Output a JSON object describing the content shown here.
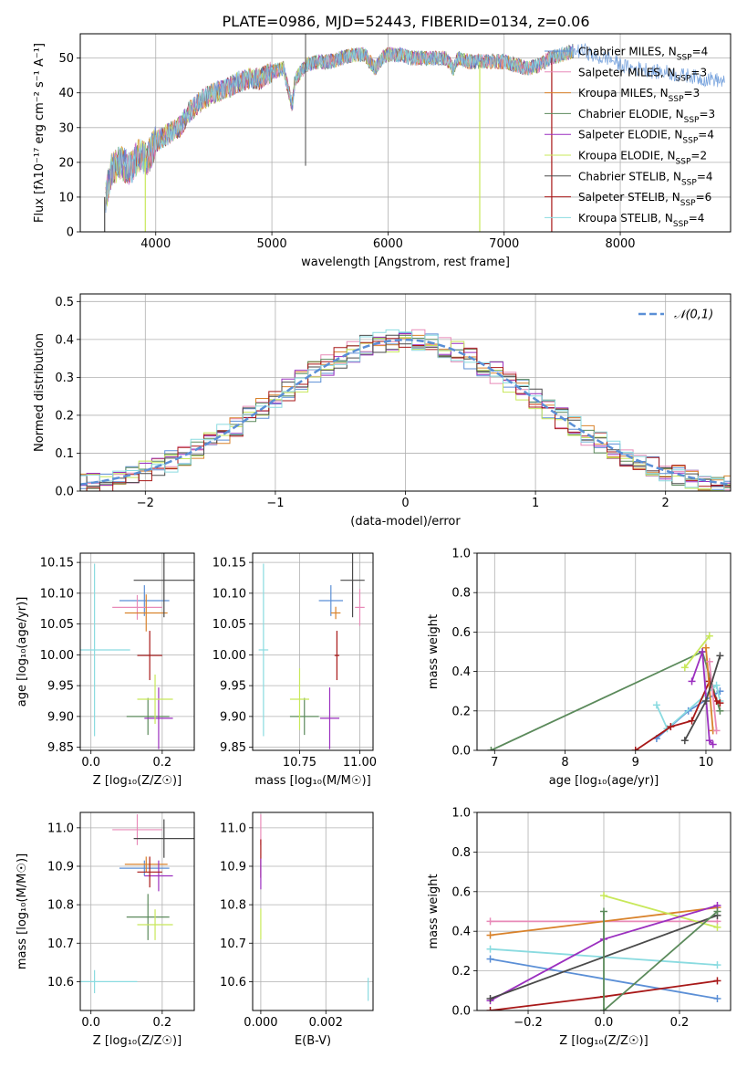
{
  "figure": {
    "title": "PLATE=0986, MJD=52443, FIBERID=0134, z=0.06"
  },
  "colors": {
    "chabrier_miles": "#5b8fd6",
    "salpeter_miles": "#e88ab8",
    "kroupa_miles": "#d9822b",
    "chabrier_elodie": "#5b8a5b",
    "salpeter_elodie": "#9b2fbf",
    "kroupa_elodie": "#c8e85a",
    "chabrier_stelib": "#4a4a4a",
    "salpeter_stelib": "#a81818",
    "kroupa_stelib": "#8adbe0",
    "grid": "#b0b0b0",
    "normal_curve": "#5b8fd6"
  },
  "chart_data": [
    {
      "id": "spectrum",
      "type": "line",
      "title": "PLATE=0986, MJD=52443, FIBERID=0134, z=0.06",
      "xlabel": "wavelength [Angstrom, rest frame]",
      "ylabel": "Flux [fλ10⁻¹⁷ erg cm⁻² s⁻¹ A⁻¹]",
      "xlim": [
        3350,
        8950
      ],
      "ylim": [
        0,
        57
      ],
      "xticks": [
        4000,
        5000,
        6000,
        7000,
        8000
      ],
      "yticks": [
        0,
        10,
        20,
        30,
        40,
        50
      ],
      "legend_position": "top-right",
      "legend": [
        {
          "label": "Chabrier MILES, N_SSP=4",
          "color_key": "chabrier_miles"
        },
        {
          "label": "Salpeter MILES, N_SSP=3",
          "color_key": "salpeter_miles"
        },
        {
          "label": "Kroupa MILES, N_SSP=3",
          "color_key": "kroupa_miles"
        },
        {
          "label": "Chabrier ELODIE, N_SSP=3",
          "color_key": "chabrier_elodie"
        },
        {
          "label": "Salpeter ELODIE, N_SSP=4",
          "color_key": "salpeter_elodie"
        },
        {
          "label": "Kroupa ELODIE, N_SSP=2",
          "color_key": "kroupa_elodie"
        },
        {
          "label": "Chabrier STELIB, N_SSP=4",
          "color_key": "chabrier_stelib"
        },
        {
          "label": "Salpeter STELIB, N_SSP=6",
          "color_key": "salpeter_stelib"
        },
        {
          "label": "Kroupa STELIB, N_SSP=4",
          "color_key": "kroupa_stelib"
        }
      ],
      "continuum": {
        "x": [
          3570,
          3620,
          3700,
          3780,
          3850,
          3930,
          4000,
          4100,
          4200,
          4300,
          4400,
          4500,
          4600,
          4700,
          4800,
          4860,
          4900,
          5000,
          5100,
          5175,
          5200,
          5300,
          5400,
          5500,
          5600,
          5700,
          5800,
          5890,
          5950,
          6000,
          6100,
          6200,
          6300,
          6400,
          6500,
          6563,
          6600,
          6700,
          6800,
          6900,
          7000,
          7100,
          7200,
          7300,
          7400,
          7500,
          7600
        ],
        "y": [
          10,
          18,
          20,
          18,
          22,
          21,
          26,
          28,
          30,
          35,
          38,
          40,
          41,
          43,
          44,
          44,
          44,
          46,
          47,
          36,
          44,
          48,
          49,
          49,
          50,
          51,
          51,
          47,
          50,
          51,
          51,
          50,
          50,
          50,
          50,
          47,
          50,
          49,
          49,
          49,
          49,
          48,
          47,
          48,
          50,
          51,
          52
        ]
      },
      "model_tail": {
        "x": [
          7600,
          7700,
          7800,
          7900,
          8000,
          8100,
          8200,
          8300,
          8400,
          8500,
          8600,
          8700,
          8800,
          8900
        ],
        "y": [
          52,
          52,
          50,
          50,
          48,
          47,
          47,
          46,
          46,
          45,
          45,
          44,
          44,
          43
        ]
      },
      "dropouts": [
        {
          "x": 3560,
          "color_key": "chabrier_stelib"
        },
        {
          "x": 3910,
          "color_key": "kroupa_elodie"
        },
        {
          "x": 6790,
          "color_key": "kroupa_elodie"
        },
        {
          "x": 7410,
          "color_key": "salpeter_stelib"
        }
      ]
    },
    {
      "id": "residuals",
      "type": "histogram",
      "xlabel": "(data-model)/error",
      "ylabel": "Normed distribution",
      "xlim": [
        -2.5,
        2.5
      ],
      "ylim": [
        0,
        0.52
      ],
      "xticks": [
        -2,
        -1,
        0,
        1,
        2
      ],
      "yticks": [
        0.0,
        0.1,
        0.2,
        0.3,
        0.4,
        0.5
      ],
      "bin_width": 0.1,
      "legend_position": "top-right",
      "curve_label": "𝒩(0,1)",
      "curve_mean": 0,
      "curve_sigma": 1
    },
    {
      "id": "age_vs_z",
      "type": "scatter",
      "xlabel": "Z [log₁₀(Z/Z☉)]",
      "ylabel": "age  [log₁₀(age/yr)]",
      "xlim": [
        -0.03,
        0.29
      ],
      "ylim": [
        9.845,
        10.165
      ],
      "xticks": [
        0.0,
        0.2
      ],
      "yticks": [
        9.85,
        9.9,
        9.95,
        10.0,
        10.05,
        10.1,
        10.15
      ],
      "points": [
        {
          "color_key": "chabrier_miles",
          "x": 0.15,
          "y": 10.088,
          "xerr": 0.07,
          "yerr": 0.025
        },
        {
          "color_key": "salpeter_miles",
          "x": 0.13,
          "y": 10.077,
          "xerr": 0.07,
          "yerr": 0.02
        },
        {
          "color_key": "kroupa_miles",
          "x": 0.155,
          "y": 10.068,
          "xerr": 0.06,
          "yerr": 0.03
        },
        {
          "color_key": "chabrier_elodie",
          "x": 0.16,
          "y": 9.9,
          "xerr": 0.06,
          "yerr": 0.03
        },
        {
          "color_key": "salpeter_elodie",
          "x": 0.19,
          "y": 9.897,
          "xerr": 0.04,
          "yerr": 0.05
        },
        {
          "color_key": "kroupa_elodie",
          "x": 0.18,
          "y": 9.928,
          "xerr": 0.05,
          "yerr": 0.04
        },
        {
          "color_key": "chabrier_stelib",
          "x": 0.205,
          "y": 10.121,
          "xerr": 0.085,
          "yerr": 0.06
        },
        {
          "color_key": "salpeter_stelib",
          "x": 0.165,
          "y": 9.999,
          "xerr": 0.035,
          "yerr": 0.04
        },
        {
          "color_key": "kroupa_stelib",
          "x": 0.01,
          "y": 10.008,
          "xerr": 0.1,
          "yerr": 0.14
        }
      ]
    },
    {
      "id": "age_vs_mass",
      "type": "scatter",
      "xlabel": "mass [log₁₀(M/M☉)]",
      "ylabel": "",
      "xlim": [
        10.555,
        11.055
      ],
      "ylim": [
        9.845,
        10.165
      ],
      "xticks": [
        10.75,
        11.0
      ],
      "yticks": [
        9.85,
        9.9,
        9.95,
        10.0,
        10.05,
        10.1,
        10.15
      ],
      "points": [
        {
          "color_key": "chabrier_miles",
          "x": 10.88,
          "y": 10.088,
          "xerr": 0.05,
          "yerr": 0.025
        },
        {
          "color_key": "salpeter_miles",
          "x": 11.0,
          "y": 10.077,
          "xerr": 0.02,
          "yerr": 0.03
        },
        {
          "color_key": "kroupa_miles",
          "x": 10.9,
          "y": 10.068,
          "xerr": 0.02,
          "yerr": 0.01
        },
        {
          "color_key": "chabrier_elodie",
          "x": 10.77,
          "y": 9.9,
          "xerr": 0.06,
          "yerr": 0.03
        },
        {
          "color_key": "salpeter_elodie",
          "x": 10.875,
          "y": 9.897,
          "xerr": 0.04,
          "yerr": 0.05
        },
        {
          "color_key": "kroupa_elodie",
          "x": 10.75,
          "y": 9.928,
          "xerr": 0.04,
          "yerr": 0.05
        },
        {
          "color_key": "chabrier_stelib",
          "x": 10.97,
          "y": 10.121,
          "xerr": 0.05,
          "yerr": 0.06
        },
        {
          "color_key": "salpeter_stelib",
          "x": 10.905,
          "y": 9.999,
          "xerr": 0.01,
          "yerr": 0.04
        },
        {
          "color_key": "kroupa_stelib",
          "x": 10.6,
          "y": 10.008,
          "xerr": 0.02,
          "yerr": 0.14
        }
      ]
    },
    {
      "id": "weight_vs_age",
      "type": "line",
      "xlabel": "age  [log₁₀(age/yr)]",
      "ylabel": "mass weight",
      "xlim": [
        6.75,
        10.35
      ],
      "ylim": [
        0,
        1
      ],
      "xticks": [
        7,
        8,
        9,
        10
      ],
      "yticks": [
        0.0,
        0.2,
        0.4,
        0.6,
        0.8,
        1.0
      ],
      "series": [
        {
          "color_key": "chabrier_elodie",
          "x": [
            6.95,
            9.95,
            10.2
          ],
          "y": [
            0.0,
            0.5,
            0.2
          ]
        },
        {
          "color_key": "chabrier_miles",
          "x": [
            9.3,
            9.75,
            10.2
          ],
          "y": [
            0.06,
            0.2,
            0.3
          ]
        },
        {
          "color_key": "kroupa_stelib",
          "x": [
            9.3,
            9.45,
            10.15,
            10.2
          ],
          "y": [
            0.23,
            0.11,
            0.33,
            0.25
          ]
        },
        {
          "color_key": "salpeter_stelib",
          "x": [
            9.0,
            9.5,
            9.8,
            10.05,
            10.15,
            10.2
          ],
          "y": [
            0.0,
            0.12,
            0.15,
            0.35,
            0.25,
            0.24
          ]
        },
        {
          "color_key": "salpeter_elodie",
          "x": [
            9.8,
            9.95,
            10.05,
            10.1
          ],
          "y": [
            0.35,
            0.5,
            0.05,
            0.03
          ]
        },
        {
          "color_key": "kroupa_elodie",
          "x": [
            9.7,
            10.05
          ],
          "y": [
            0.42,
            0.58
          ]
        },
        {
          "color_key": "kroupa_miles",
          "x": [
            10.0,
            10.1
          ],
          "y": [
            0.52,
            0.1
          ]
        },
        {
          "color_key": "salpeter_miles",
          "x": [
            10.05,
            10.15
          ],
          "y": [
            0.45,
            0.1
          ]
        },
        {
          "color_key": "chabrier_stelib",
          "x": [
            9.7,
            10.0,
            10.2
          ],
          "y": [
            0.05,
            0.25,
            0.48
          ]
        }
      ]
    },
    {
      "id": "mass_vs_z",
      "type": "scatter",
      "xlabel": "Z [log₁₀(Z/Z☉)]",
      "ylabel": "mass [log₁₀(M/M☉)]",
      "xlim": [
        -0.03,
        0.29
      ],
      "ylim": [
        10.525,
        11.04
      ],
      "xticks": [
        0.0,
        0.2
      ],
      "yticks": [
        10.6,
        10.7,
        10.8,
        10.9,
        11.0
      ],
      "points": [
        {
          "color_key": "chabrier_miles",
          "x": 0.15,
          "y": 10.895,
          "xerr": 0.07,
          "yerr": 0.02
        },
        {
          "color_key": "salpeter_miles",
          "x": 0.13,
          "y": 10.995,
          "xerr": 0.07,
          "yerr": 0.04
        },
        {
          "color_key": "kroupa_miles",
          "x": 0.155,
          "y": 10.905,
          "xerr": 0.06,
          "yerr": 0.02
        },
        {
          "color_key": "chabrier_elodie",
          "x": 0.16,
          "y": 10.768,
          "xerr": 0.06,
          "yerr": 0.06
        },
        {
          "color_key": "salpeter_elodie",
          "x": 0.19,
          "y": 10.875,
          "xerr": 0.04,
          "yerr": 0.04
        },
        {
          "color_key": "kroupa_elodie",
          "x": 0.18,
          "y": 10.748,
          "xerr": 0.05,
          "yerr": 0.04
        },
        {
          "color_key": "chabrier_stelib",
          "x": 0.205,
          "y": 10.972,
          "xerr": 0.085,
          "yerr": 0.05
        },
        {
          "color_key": "salpeter_stelib",
          "x": 0.165,
          "y": 10.885,
          "xerr": 0.035,
          "yerr": 0.04
        },
        {
          "color_key": "kroupa_stelib",
          "x": 0.01,
          "y": 10.6,
          "xerr": 0.12,
          "yerr": 0.03
        }
      ]
    },
    {
      "id": "mass_vs_ebv",
      "type": "scatter",
      "xlabel": "E(B-V)",
      "ylabel": "",
      "xlim": [
        -0.00025,
        0.00345
      ],
      "ylim": [
        10.525,
        11.04
      ],
      "xticks": [
        0.0,
        0.002
      ],
      "xtick_labels": [
        "0.000",
        "0.002"
      ],
      "yticks": [
        10.6,
        10.7,
        10.8,
        10.9,
        11.0
      ],
      "points": [
        {
          "color_key": "salpeter_miles",
          "x": 0.0,
          "y": 10.995,
          "xerr": 0.0,
          "yerr": 0.04
        },
        {
          "color_key": "salpeter_stelib",
          "x": 0.0,
          "y": 10.92,
          "xerr": 0.0,
          "yerr": 0.05
        },
        {
          "color_key": "salpeter_elodie",
          "x": 0.0,
          "y": 10.88,
          "xerr": 0.0,
          "yerr": 0.04
        },
        {
          "color_key": "kroupa_elodie",
          "x": 0.0,
          "y": 10.75,
          "xerr": 0.0,
          "yerr": 0.04
        },
        {
          "color_key": "kroupa_stelib",
          "x": 0.0033,
          "y": 10.58,
          "xerr": 0.0,
          "yerr": 0.03
        }
      ]
    },
    {
      "id": "weight_vs_z",
      "type": "line",
      "xlabel": "Z [log₁₀(Z/Z☉)]",
      "ylabel": "mass weight",
      "xlim": [
        -0.335,
        0.335
      ],
      "ylim": [
        0,
        1
      ],
      "xticks": [
        -0.2,
        0.0,
        0.2
      ],
      "xtick_labels": [
        "−0.2",
        "0.0",
        "0.2"
      ],
      "yticks": [
        0.0,
        0.2,
        0.4,
        0.6,
        0.8,
        1.0
      ],
      "series": [
        {
          "color_key": "salpeter_miles",
          "x": [
            -0.3,
            0.3
          ],
          "y": [
            0.45,
            0.45
          ]
        },
        {
          "color_key": "kroupa_miles",
          "x": [
            -0.3,
            0.3
          ],
          "y": [
            0.38,
            0.52
          ]
        },
        {
          "color_key": "kroupa_elodie",
          "x": [
            0.0,
            0.3
          ],
          "y": [
            0.58,
            0.42
          ]
        },
        {
          "color_key": "kroupa_stelib",
          "x": [
            -0.3,
            0.3
          ],
          "y": [
            0.31,
            0.23
          ]
        },
        {
          "color_key": "chabrier_miles",
          "x": [
            -0.3,
            0.3
          ],
          "y": [
            0.26,
            0.06
          ]
        },
        {
          "color_key": "salpeter_elodie",
          "x": [
            -0.3,
            0.0,
            0.3
          ],
          "y": [
            0.05,
            0.36,
            0.53
          ]
        },
        {
          "color_key": "chabrier_stelib",
          "x": [
            -0.3,
            0.3
          ],
          "y": [
            0.06,
            0.48
          ]
        },
        {
          "color_key": "salpeter_stelib",
          "x": [
            -0.3,
            0.0,
            0.3
          ],
          "y": [
            0.0,
            0.07,
            0.15
          ]
        },
        {
          "color_key": "chabrier_elodie",
          "x": [
            0.0,
            0.0,
            0.3
          ],
          "y": [
            0.5,
            0.0,
            0.5
          ]
        }
      ]
    }
  ]
}
